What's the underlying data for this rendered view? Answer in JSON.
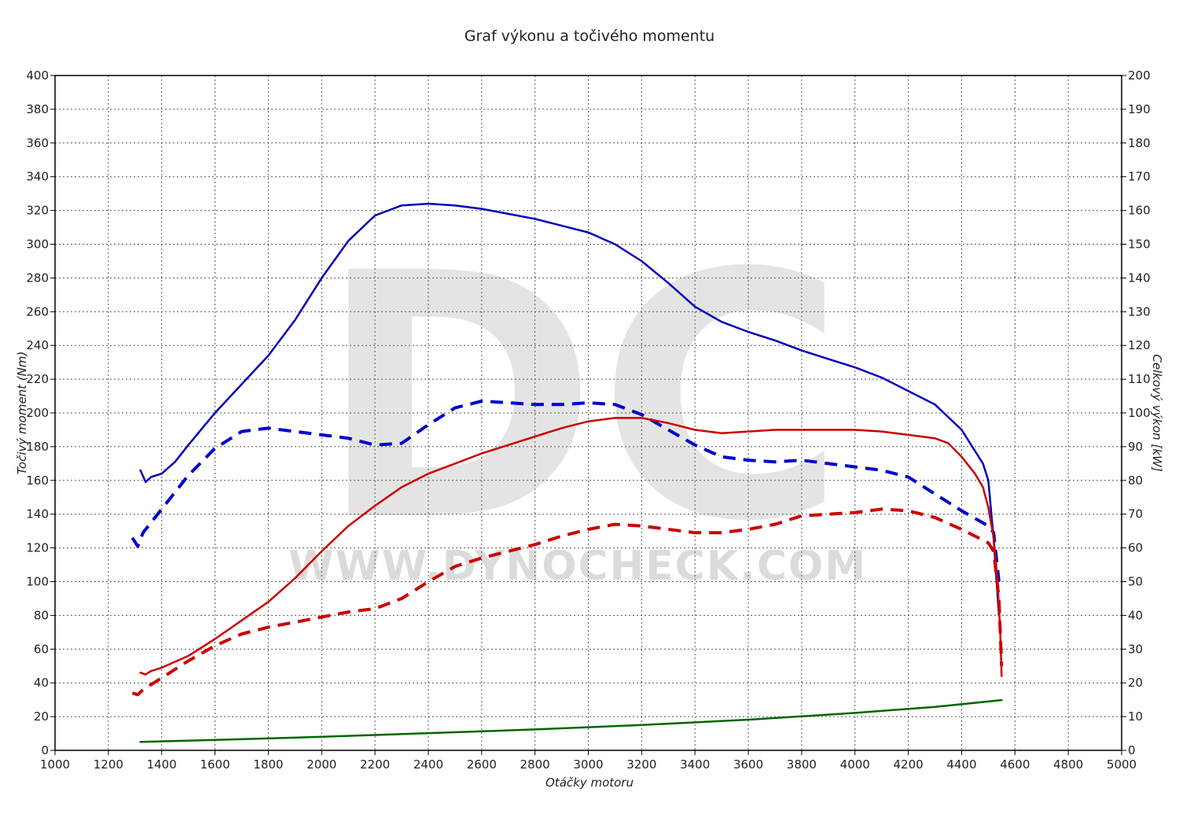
{
  "chart_data": {
    "type": "line",
    "title": "Graf výkonu a točivého momentu",
    "xlabel": "Otáčky motoru",
    "ylabel_left": "Točivý moment (Nm)",
    "ylabel_right": "Celkový výkon [kW]",
    "xlim": [
      1000,
      5000
    ],
    "ylim_left": [
      0,
      400
    ],
    "ylim_right": [
      0,
      200
    ],
    "x_ticks": [
      "1000",
      "1200",
      "1400",
      "1600",
      "1800",
      "2000",
      "2200",
      "2400",
      "2600",
      "2800",
      "3000",
      "3200",
      "3400",
      "3600",
      "3800",
      "4000",
      "4200",
      "4400",
      "4600",
      "4800",
      "5000"
    ],
    "y_left_ticks": [
      "0",
      "20",
      "40",
      "60",
      "80",
      "100",
      "120",
      "140",
      "160",
      "180",
      "200",
      "220",
      "240",
      "260",
      "280",
      "300",
      "320",
      "340",
      "360",
      "380",
      "400"
    ],
    "y_right_ticks": [
      "0",
      "10",
      "20",
      "30",
      "40",
      "50",
      "60",
      "70",
      "80",
      "90",
      "100",
      "110",
      "120",
      "130",
      "140",
      "150",
      "160",
      "170",
      "180",
      "190",
      "200"
    ],
    "grid": true,
    "watermark": {
      "logo": "DC",
      "url": "WWW.DYNOCHECK.COM"
    },
    "series": [
      {
        "axis": "left",
        "color": "#0000bb",
        "dash": "solid",
        "points": [
          [
            1320,
            166
          ],
          [
            1340,
            159
          ],
          [
            1360,
            162
          ],
          [
            1400,
            164
          ],
          [
            1450,
            171
          ],
          [
            1500,
            181
          ],
          [
            1600,
            200
          ],
          [
            1700,
            217
          ],
          [
            1800,
            234
          ],
          [
            1900,
            255
          ],
          [
            2000,
            280
          ],
          [
            2100,
            302
          ],
          [
            2200,
            317
          ],
          [
            2300,
            323
          ],
          [
            2400,
            324
          ],
          [
            2500,
            323
          ],
          [
            2600,
            321
          ],
          [
            2700,
            318
          ],
          [
            2800,
            315
          ],
          [
            2900,
            311
          ],
          [
            3000,
            307
          ],
          [
            3100,
            300
          ],
          [
            3200,
            290
          ],
          [
            3300,
            277
          ],
          [
            3400,
            263
          ],
          [
            3500,
            254
          ],
          [
            3600,
            248
          ],
          [
            3700,
            243
          ],
          [
            3800,
            237
          ],
          [
            3900,
            232
          ],
          [
            4000,
            227
          ],
          [
            4100,
            221
          ],
          [
            4200,
            213
          ],
          [
            4300,
            205
          ],
          [
            4400,
            190
          ],
          [
            4480,
            170
          ],
          [
            4500,
            160
          ],
          [
            4520,
            125
          ],
          [
            4540,
            80
          ]
        ]
      },
      {
        "axis": "left",
        "color": "#0000cc",
        "dash": "dashed",
        "points": [
          [
            1290,
            126
          ],
          [
            1310,
            121
          ],
          [
            1330,
            129
          ],
          [
            1400,
            143
          ],
          [
            1500,
            163
          ],
          [
            1600,
            179
          ],
          [
            1700,
            189
          ],
          [
            1800,
            191
          ],
          [
            1900,
            189
          ],
          [
            2000,
            187
          ],
          [
            2100,
            185
          ],
          [
            2200,
            181
          ],
          [
            2300,
            182
          ],
          [
            2400,
            193
          ],
          [
            2500,
            203
          ],
          [
            2600,
            207
          ],
          [
            2700,
            206
          ],
          [
            2800,
            205
          ],
          [
            2900,
            205
          ],
          [
            3000,
            206
          ],
          [
            3100,
            205
          ],
          [
            3200,
            199
          ],
          [
            3300,
            190
          ],
          [
            3400,
            181
          ],
          [
            3500,
            174
          ],
          [
            3600,
            172
          ],
          [
            3700,
            171
          ],
          [
            3800,
            172
          ],
          [
            3900,
            170
          ],
          [
            4000,
            168
          ],
          [
            4100,
            166
          ],
          [
            4200,
            162
          ],
          [
            4300,
            152
          ],
          [
            4400,
            142
          ],
          [
            4500,
            133
          ],
          [
            4520,
            129
          ],
          [
            4540,
            100
          ]
        ]
      },
      {
        "axis": "right",
        "color": "#cc0000",
        "dash": "solid",
        "points": [
          [
            1320,
            23
          ],
          [
            1340,
            22.5
          ],
          [
            1360,
            23.5
          ],
          [
            1400,
            24.5
          ],
          [
            1500,
            28
          ],
          [
            1600,
            33
          ],
          [
            1700,
            38.5
          ],
          [
            1800,
            44
          ],
          [
            1900,
            51
          ],
          [
            2000,
            59
          ],
          [
            2100,
            66.5
          ],
          [
            2200,
            72.5
          ],
          [
            2300,
            78
          ],
          [
            2400,
            82
          ],
          [
            2500,
            85
          ],
          [
            2600,
            88
          ],
          [
            2700,
            90.5
          ],
          [
            2800,
            93
          ],
          [
            2900,
            95.5
          ],
          [
            3000,
            97.5
          ],
          [
            3100,
            98.5
          ],
          [
            3200,
            98.5
          ],
          [
            3300,
            97
          ],
          [
            3400,
            95
          ],
          [
            3500,
            94
          ],
          [
            3600,
            94.5
          ],
          [
            3700,
            95
          ],
          [
            3800,
            95
          ],
          [
            3900,
            95
          ],
          [
            4000,
            95
          ],
          [
            4100,
            94.5
          ],
          [
            4200,
            93.5
          ],
          [
            4300,
            92.5
          ],
          [
            4350,
            91
          ],
          [
            4400,
            87
          ],
          [
            4450,
            82
          ],
          [
            4480,
            78
          ],
          [
            4500,
            72
          ],
          [
            4520,
            63
          ],
          [
            4535,
            50
          ],
          [
            4545,
            35
          ],
          [
            4550,
            22
          ]
        ]
      },
      {
        "axis": "right",
        "color": "#cc0000",
        "dash": "dashed",
        "points": [
          [
            1290,
            17
          ],
          [
            1310,
            16.5
          ],
          [
            1330,
            18
          ],
          [
            1400,
            21.5
          ],
          [
            1500,
            26.5
          ],
          [
            1600,
            31
          ],
          [
            1700,
            34.5
          ],
          [
            1800,
            36.5
          ],
          [
            1900,
            38
          ],
          [
            2000,
            39.5
          ],
          [
            2100,
            41
          ],
          [
            2200,
            42
          ],
          [
            2300,
            45
          ],
          [
            2400,
            50
          ],
          [
            2500,
            54.5
          ],
          [
            2600,
            57
          ],
          [
            2700,
            59
          ],
          [
            2800,
            61
          ],
          [
            2900,
            63.5
          ],
          [
            3000,
            65.5
          ],
          [
            3100,
            67
          ],
          [
            3200,
            66.5
          ],
          [
            3300,
            65.5
          ],
          [
            3400,
            64.5
          ],
          [
            3500,
            64.5
          ],
          [
            3600,
            65.5
          ],
          [
            3700,
            67
          ],
          [
            3800,
            69.5
          ],
          [
            3900,
            70
          ],
          [
            4000,
            70.5
          ],
          [
            4100,
            71.5
          ],
          [
            4200,
            71
          ],
          [
            4300,
            69
          ],
          [
            4400,
            65.5
          ],
          [
            4500,
            61.5
          ],
          [
            4520,
            59
          ],
          [
            4540,
            45
          ],
          [
            4550,
            25
          ]
        ]
      },
      {
        "axis": "right",
        "color": "#006600",
        "dash": "solid",
        "points": [
          [
            1320,
            2.5
          ],
          [
            1600,
            3.1
          ],
          [
            2000,
            4.0
          ],
          [
            2400,
            5.1
          ],
          [
            2800,
            6.2
          ],
          [
            3200,
            7.5
          ],
          [
            3600,
            9.1
          ],
          [
            4000,
            11.1
          ],
          [
            4300,
            12.9
          ],
          [
            4550,
            14.9
          ]
        ]
      }
    ]
  }
}
